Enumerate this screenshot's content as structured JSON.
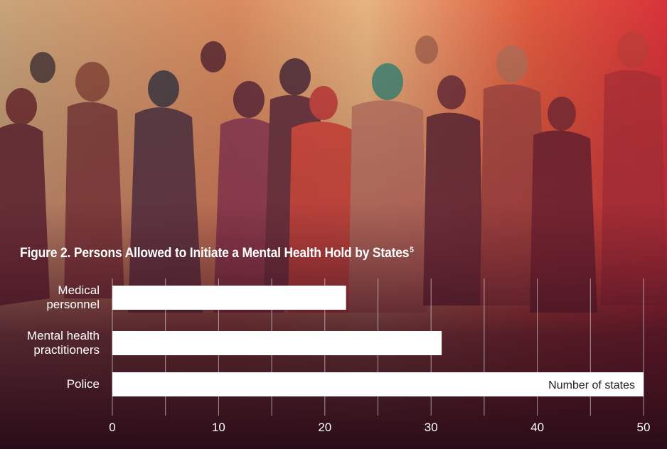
{
  "title": "Figure 2. Persons Allowed to Initiate a Mental Health Hold by States",
  "title_superscript": "5",
  "chart_data": {
    "type": "bar",
    "orientation": "horizontal",
    "categories": [
      "Medical personnel",
      "Mental health practitioners",
      "Police"
    ],
    "category_lines": [
      [
        "Medical",
        "personnel"
      ],
      [
        "Mental health",
        "practitioners"
      ],
      [
        "Police"
      ]
    ],
    "values": [
      22,
      31,
      50
    ],
    "xlabel": "Number of states",
    "xlim": [
      0,
      50
    ],
    "xticks": [
      0,
      10,
      20,
      30,
      40,
      50
    ],
    "grid": true,
    "bar_color": "#ffffff"
  }
}
